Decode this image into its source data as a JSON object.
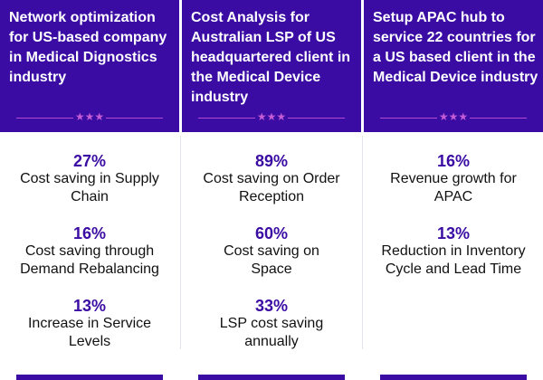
{
  "cards": [
    {
      "title": "Network optimization for US-based company in Medical Dignostics industry",
      "stats": [
        {
          "value": "27%",
          "label": "Cost saving in Supply Chain"
        },
        {
          "value": "16%",
          "label": "Cost saving through Demand Rebalancing"
        },
        {
          "value": "13%",
          "label": "Increase in Service Levels"
        }
      ]
    },
    {
      "title": "Cost Analysis for Australian LSP of US headquartered client in the Medical Device industry",
      "stats": [
        {
          "value": "89%",
          "label": "Cost saving on Order Reception"
        },
        {
          "value": "60%",
          "label": "Cost saving on Space"
        },
        {
          "value": "33%",
          "label": "LSP cost saving annually"
        }
      ]
    },
    {
      "title": "Setup APAC hub to service 22 countries for a US based client in the Medical Device industry",
      "stats": [
        {
          "value": "16%",
          "label": "Revenue growth for APAC"
        },
        {
          "value": "13%",
          "label": "Reduction in Inventory Cycle and Lead Time"
        }
      ]
    }
  ],
  "decoration": {
    "stars": "★★★"
  },
  "colors": {
    "header_bg": "#3a0ca3",
    "accent": "#c35bd6",
    "value_text": "#3a0ca3"
  }
}
